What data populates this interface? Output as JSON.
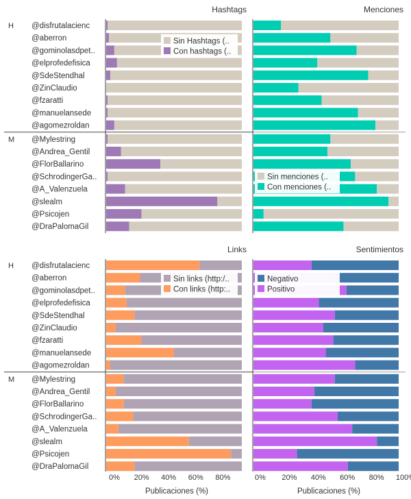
{
  "chart_data": {
    "type": "bar",
    "xlabel": "Publicaciones (%)",
    "accounts": [
      {
        "group": "H",
        "name": "@disfrutalacienc"
      },
      {
        "group": "H",
        "name": "@aberron"
      },
      {
        "group": "H",
        "name": "@gominolasdpet.."
      },
      {
        "group": "H",
        "name": "@elprofedefisica"
      },
      {
        "group": "H",
        "name": "@SdeStendhal"
      },
      {
        "group": "H",
        "name": "@ZinClaudio"
      },
      {
        "group": "H",
        "name": "@fzaratti"
      },
      {
        "group": "H",
        "name": "@manuelansede"
      },
      {
        "group": "H",
        "name": "@agomezroldan"
      },
      {
        "group": "M",
        "name": "@Mylestring"
      },
      {
        "group": "M",
        "name": "@Andrea_Gentil"
      },
      {
        "group": "M",
        "name": "@FlorBallarino"
      },
      {
        "group": "M",
        "name": "@SchrodingerGa.."
      },
      {
        "group": "M",
        "name": "@A_Valenzuela"
      },
      {
        "group": "M",
        "name": "@slealm"
      },
      {
        "group": "M",
        "name": "@Psicojen"
      },
      {
        "group": "M",
        "name": "@DraPalomaGil"
      }
    ],
    "panels": [
      {
        "title": "Hashtags",
        "legend": [
          "Sin Hashtags (..",
          "Con hashtags (.."
        ],
        "colors": [
          "#d5ccc0",
          "#9e79b6"
        ],
        "values": [
          1,
          2,
          6,
          8,
          3,
          0,
          1,
          1,
          6,
          1,
          11,
          40,
          1,
          14,
          82,
          26,
          17
        ]
      },
      {
        "title": "Menciones",
        "legend": [
          "Sin menciones (..",
          "Con menciones (.."
        ],
        "colors": [
          "#d5ccc0",
          "#00cdb2"
        ],
        "values": [
          19,
          53,
          71,
          44,
          79,
          31,
          47,
          72,
          84,
          53,
          51,
          67,
          70,
          85,
          93,
          7,
          62
        ]
      },
      {
        "title": "Links",
        "legend": [
          "Sin links (http:/..",
          "Con links (http:.."
        ],
        "colors": [
          "#b0a4b4",
          "#fd9c5e"
        ],
        "values": [
          69,
          25,
          14,
          15,
          21,
          7,
          26,
          50,
          3,
          13,
          7,
          13,
          20,
          9,
          61,
          92,
          21
        ]
      },
      {
        "title": "Sentimientos",
        "legend": [
          "Negativo",
          "Positivo"
        ],
        "colors": [
          "#4278a8",
          "#c264f0"
        ],
        "values": [
          40,
          56,
          64,
          45,
          56,
          48,
          55,
          50,
          70,
          56,
          42,
          40,
          58,
          68,
          85,
          30,
          65
        ]
      }
    ],
    "xticks_left": [
      "0%",
      "20%",
      "40%",
      "60%",
      "80%"
    ],
    "xticks_right": [
      "0%",
      "20%",
      "40%",
      "60%",
      "80%",
      "100%"
    ]
  }
}
